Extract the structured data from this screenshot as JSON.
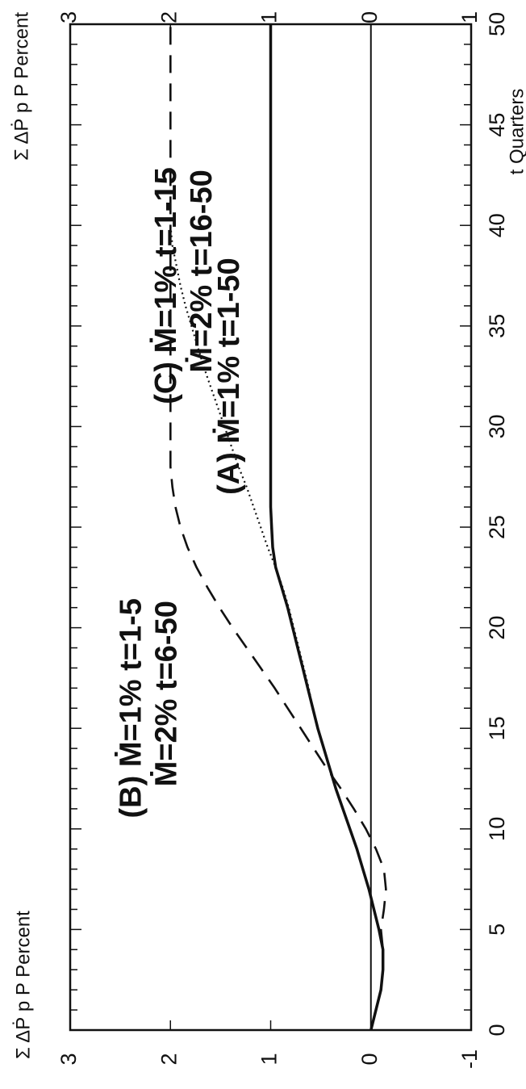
{
  "chart_data": {
    "type": "line",
    "orientation": "rotated-90-clockwise",
    "xlabel": "t Quarters",
    "ylabel_left": "Σ ΔṖ p P Percent",
    "ylabel_right": "Σ ΔṖ p P Percent",
    "xlim": [
      0,
      50
    ],
    "ylim": [
      -1,
      3
    ],
    "x_ticks": [
      0,
      5,
      10,
      15,
      20,
      25,
      30,
      35,
      40,
      45,
      50
    ],
    "x_tick_labels": [
      "0",
      "5",
      "10",
      "15",
      "20",
      "25",
      "30",
      "35",
      "40",
      "45",
      "50"
    ],
    "y_ticks": [
      -1,
      0,
      1,
      2,
      3
    ],
    "y_tick_labels": [
      "-1",
      "0",
      "1",
      "2",
      "3"
    ],
    "grid": false,
    "series": [
      {
        "name": "(A) Ṁ=1% t=1-50",
        "style": "solid",
        "x": [
          0,
          1,
          2,
          3,
          4,
          5,
          6,
          7,
          8,
          9,
          10,
          11,
          12,
          13,
          14,
          15,
          16,
          17,
          18,
          19,
          20,
          21,
          22,
          23,
          24,
          25,
          26,
          27,
          28,
          30,
          35,
          40,
          45,
          50
        ],
        "y": [
          0.0,
          -0.05,
          -0.1,
          -0.12,
          -0.12,
          -0.08,
          -0.03,
          0.02,
          0.08,
          0.14,
          0.21,
          0.28,
          0.35,
          0.41,
          0.47,
          0.53,
          0.58,
          0.63,
          0.68,
          0.73,
          0.78,
          0.83,
          0.89,
          0.95,
          0.98,
          0.99,
          1.0,
          1.0,
          1.0,
          1.0,
          1.0,
          1.0,
          1.0,
          1.0
        ]
      },
      {
        "name": "(B) Ṁ=1% t=1-5 Ṁ=2% t=6-50",
        "style": "dashed",
        "x": [
          0,
          1,
          2,
          3,
          4,
          5,
          6,
          7,
          8,
          9,
          10,
          11,
          12,
          13,
          14,
          15,
          16,
          17,
          18,
          19,
          20,
          21,
          22,
          23,
          24,
          25,
          26,
          27,
          28,
          29,
          30,
          35,
          40,
          45,
          50
        ],
        "y": [
          0.0,
          -0.05,
          -0.1,
          -0.12,
          -0.12,
          -0.1,
          -0.13,
          -0.15,
          -0.13,
          -0.05,
          0.05,
          0.17,
          0.3,
          0.44,
          0.57,
          0.7,
          0.83,
          0.96,
          1.1,
          1.24,
          1.38,
          1.51,
          1.63,
          1.74,
          1.83,
          1.9,
          1.95,
          1.98,
          2.0,
          2.0,
          2.0,
          2.0,
          2.0,
          2.0,
          2.0
        ]
      },
      {
        "name": "(C) Ṁ=1% t=1-15 Ṁ=2% t=16-50",
        "style": "dotted",
        "x": [
          15,
          16,
          17,
          18,
          19,
          20,
          21,
          22,
          23,
          24,
          25,
          26,
          27,
          28,
          29,
          30,
          31,
          32,
          33,
          34,
          35,
          36,
          37,
          38,
          39,
          40
        ],
        "y": [
          0.53,
          0.58,
          0.62,
          0.67,
          0.72,
          0.77,
          0.82,
          0.88,
          0.95,
          1.03,
          1.1,
          1.17,
          1.24,
          1.32,
          1.39,
          1.46,
          1.53,
          1.6,
          1.67,
          1.73,
          1.79,
          1.85,
          1.9,
          1.94,
          1.98,
          2.0
        ]
      }
    ],
    "annotations": [
      {
        "id": "a",
        "lines": [
          "(A) Ṁ=1% t=1-50"
        ],
        "x": 32.5,
        "y": 1.4
      },
      {
        "id": "b",
        "lines": [
          "(B) Ṁ=1% t=1-5",
          "Ṁ=2% t=6-50"
        ],
        "x": 16,
        "y": 2.2
      },
      {
        "id": "c",
        "lines": [
          "(C) Ṁ=1% t=1-15",
          "Ṁ=2% t=16-50"
        ],
        "x": 37,
        "y": 1.85
      }
    ]
  }
}
